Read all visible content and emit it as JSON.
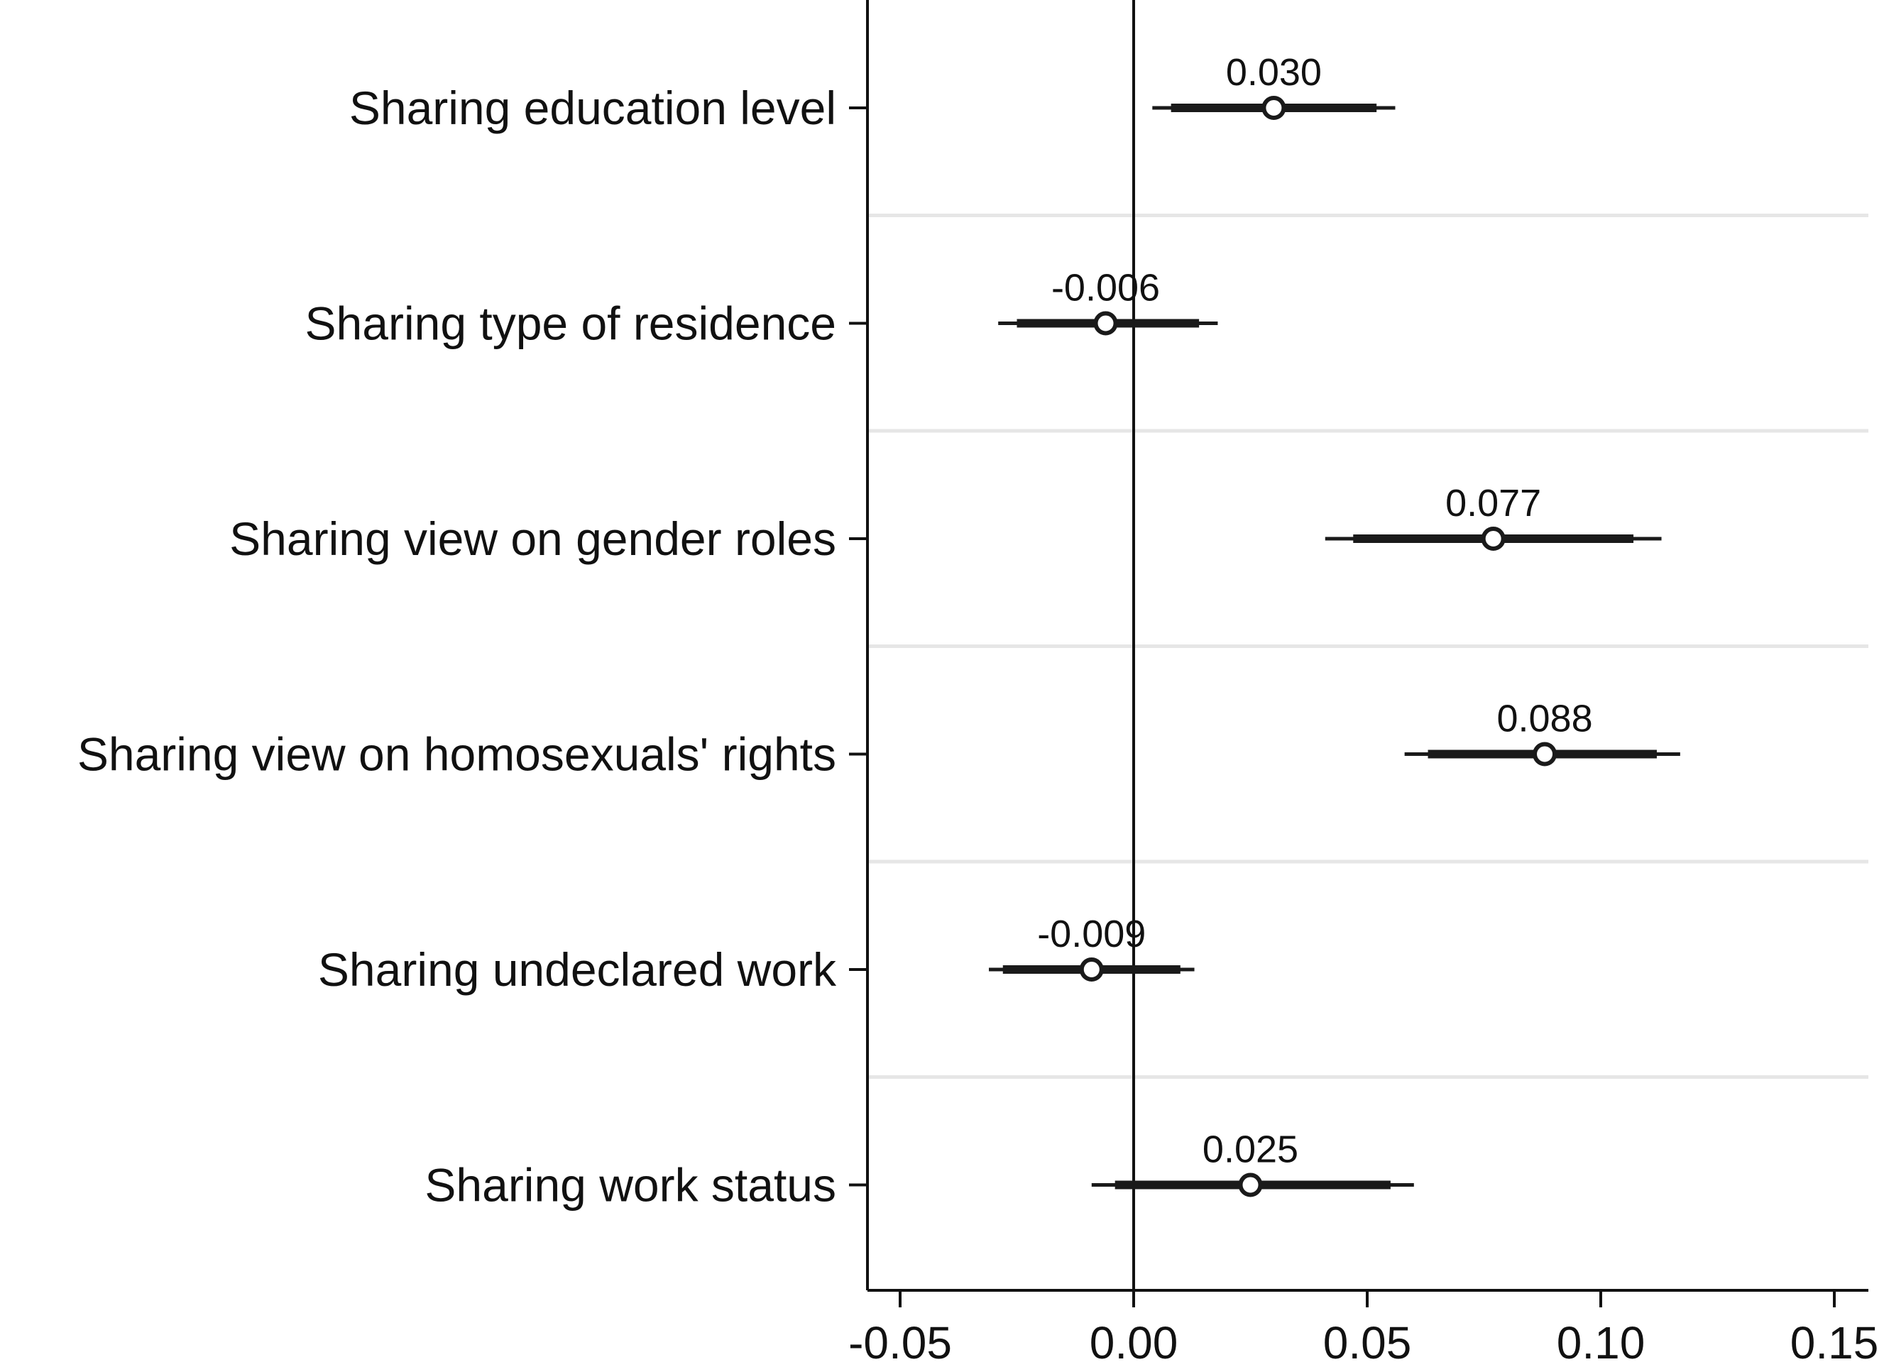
{
  "chart_data": {
    "type": "coefficient-plot",
    "orientation": "horizontal",
    "categories": [
      "Sharing education level",
      "Sharing type of residence",
      "Sharing view on gender roles",
      "Sharing view on homosexuals' rights",
      "Sharing undeclared work",
      "Sharing work status"
    ],
    "estimates": [
      0.03,
      -0.006,
      0.077,
      0.088,
      -0.009,
      0.025
    ],
    "labels": [
      "0.030",
      "-0.006",
      "0.077",
      "0.088",
      "-0.009",
      "0.025"
    ],
    "ci_inner": [
      [
        0.008,
        0.052
      ],
      [
        -0.025,
        0.014
      ],
      [
        0.047,
        0.107
      ],
      [
        0.063,
        0.112
      ],
      [
        -0.028,
        0.01
      ],
      [
        -0.004,
        0.055
      ]
    ],
    "ci_outer": [
      [
        0.004,
        0.056
      ],
      [
        -0.029,
        0.018
      ],
      [
        0.041,
        0.113
      ],
      [
        0.058,
        0.117
      ],
      [
        -0.031,
        0.013
      ],
      [
        -0.009,
        0.06
      ]
    ],
    "x_ticks": [
      -0.05,
      0.0,
      0.05,
      0.1,
      0.15
    ],
    "x_tick_labels": [
      "-0.05",
      "0.00",
      "0.05",
      "0.10",
      "0.15"
    ],
    "xlim": [
      -0.057,
      0.157
    ],
    "reference_line": 0,
    "grid": "horizontal separators between categories",
    "colors": {
      "marks": "#1a1a1a",
      "grid": "#e6e6e6",
      "axis": "#111111"
    }
  }
}
